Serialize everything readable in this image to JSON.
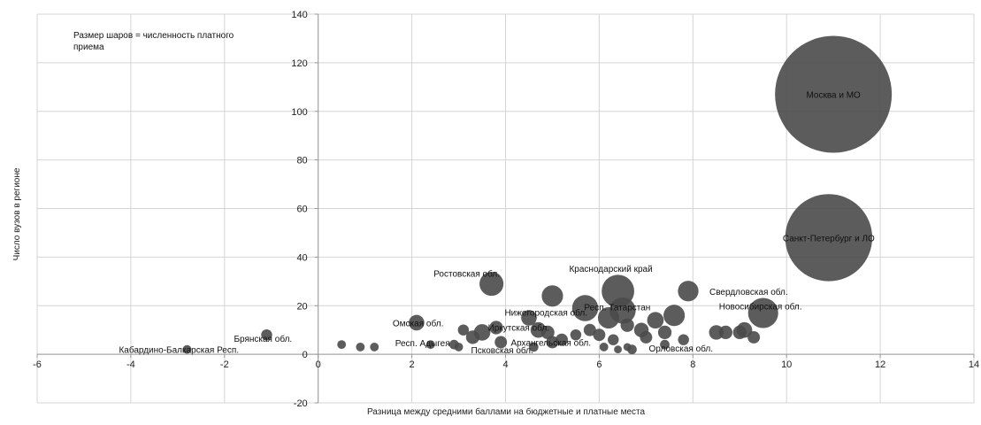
{
  "chart_data": {
    "type": "bubble",
    "xlabel": "Разница между средними баллами на бюджетные  и платные места",
    "ylabel": "Число вузов в регионе",
    "note_lines": [
      "Размер шаров = численность платного",
      "приема"
    ],
    "xlim": [
      -6,
      14
    ],
    "ylim": [
      -20,
      140
    ],
    "x_ticks": [
      -6,
      -4,
      -2,
      0,
      2,
      4,
      6,
      8,
      10,
      12,
      14
    ],
    "y_ticks": [
      -20,
      0,
      20,
      40,
      60,
      80,
      100,
      120,
      140
    ],
    "grid": true,
    "colors": {
      "bubble": "#4a4a4a",
      "grid": "#d4d4d4"
    },
    "labeled_points": [
      {
        "label": "Москва и МО",
        "x": 11.0,
        "y": 107,
        "size": 900
      },
      {
        "label": "Санкт-Петербург и ЛО",
        "x": 10.9,
        "y": 48,
        "size": 500
      },
      {
        "label": "Новосибирская обл.",
        "x": 9.5,
        "y": 17,
        "size": 60
      },
      {
        "label": "Свердловская обл.",
        "x": 7.9,
        "y": 26,
        "size": 28
      },
      {
        "label": "Краснодарский край",
        "x": 6.4,
        "y": 26,
        "size": 70
      },
      {
        "label": "Респ. Татарстан",
        "x": 6.5,
        "y": 18,
        "size": 45
      },
      {
        "label": "Ростовская обл.",
        "x": 3.7,
        "y": 29,
        "size": 38
      },
      {
        "label": "Нижегородская обл.",
        "x": 5.0,
        "y": 24,
        "size": 30
      },
      {
        "label": "Омская обл.",
        "x": 2.1,
        "y": 13,
        "size": 16
      },
      {
        "label": "Брянская обл.",
        "x": -1.1,
        "y": 8,
        "size": 8
      },
      {
        "label": "Кабардино-Балкарская Респ.",
        "x": -2.8,
        "y": 2,
        "size": 5
      },
      {
        "label": "Респ. Адыгея",
        "x": 2.4,
        "y": 4,
        "size": 5
      },
      {
        "label": "Псковская обл.",
        "x": 3.0,
        "y": 3,
        "size": 5
      },
      {
        "label": "Иркутская обл.",
        "x": 4.7,
        "y": 10,
        "size": 16
      },
      {
        "label": "Архангельская обл.",
        "x": 5.0,
        "y": 5,
        "size": 10
      },
      {
        "label": "Орловская обл.",
        "x": 7.4,
        "y": 4,
        "size": 6
      }
    ],
    "other_points": [
      {
        "x": 0.5,
        "y": 4,
        "size": 5
      },
      {
        "x": 0.9,
        "y": 3,
        "size": 5
      },
      {
        "x": 1.2,
        "y": 3,
        "size": 5
      },
      {
        "x": 2.9,
        "y": 4,
        "size": 6
      },
      {
        "x": 3.1,
        "y": 10,
        "size": 8
      },
      {
        "x": 3.3,
        "y": 7,
        "size": 12
      },
      {
        "x": 3.5,
        "y": 9,
        "size": 18
      },
      {
        "x": 3.8,
        "y": 11,
        "size": 12
      },
      {
        "x": 3.9,
        "y": 5,
        "size": 10
      },
      {
        "x": 4.5,
        "y": 15,
        "size": 16
      },
      {
        "x": 4.6,
        "y": 3,
        "size": 6
      },
      {
        "x": 4.9,
        "y": 9,
        "size": 12
      },
      {
        "x": 5.2,
        "y": 6,
        "size": 10
      },
      {
        "x": 5.5,
        "y": 8,
        "size": 8
      },
      {
        "x": 5.7,
        "y": 19,
        "size": 45
      },
      {
        "x": 5.8,
        "y": 10,
        "size": 10
      },
      {
        "x": 6.0,
        "y": 8,
        "size": 10
      },
      {
        "x": 6.1,
        "y": 3,
        "size": 5
      },
      {
        "x": 6.2,
        "y": 15,
        "size": 30
      },
      {
        "x": 6.3,
        "y": 6,
        "size": 8
      },
      {
        "x": 6.4,
        "y": 2,
        "size": 4
      },
      {
        "x": 6.6,
        "y": 3,
        "size": 4
      },
      {
        "x": 6.6,
        "y": 12,
        "size": 12
      },
      {
        "x": 6.7,
        "y": 2,
        "size": 6
      },
      {
        "x": 6.9,
        "y": 10,
        "size": 14
      },
      {
        "x": 7.0,
        "y": 7,
        "size": 10
      },
      {
        "x": 7.2,
        "y": 14,
        "size": 18
      },
      {
        "x": 7.4,
        "y": 9,
        "size": 12
      },
      {
        "x": 7.6,
        "y": 16,
        "size": 30
      },
      {
        "x": 7.8,
        "y": 6,
        "size": 8
      },
      {
        "x": 8.5,
        "y": 9,
        "size": 14
      },
      {
        "x": 8.7,
        "y": 9,
        "size": 12
      },
      {
        "x": 9.0,
        "y": 9,
        "size": 12
      },
      {
        "x": 9.1,
        "y": 10,
        "size": 16
      },
      {
        "x": 9.3,
        "y": 7,
        "size": 10
      }
    ]
  }
}
